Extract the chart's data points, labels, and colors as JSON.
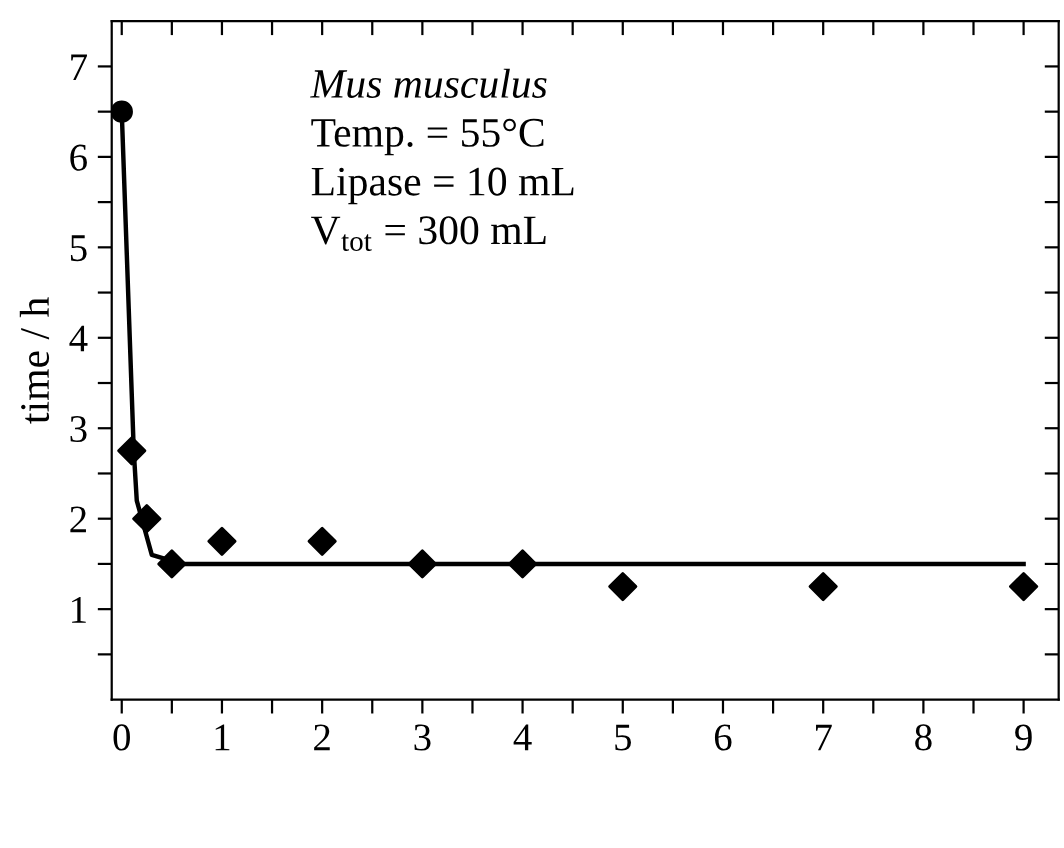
{
  "chart_data": {
    "type": "scatter",
    "ylabel": "time / h",
    "annotations": [
      "Mus musculus",
      "Temp. = 55°C",
      "Lipase = 10 mL",
      "V$_{tot}$ = 300 mL"
    ],
    "series": [
      {
        "marker": "circle",
        "color": "#000000",
        "x": [
          0
        ],
        "values": [
          6.5
        ]
      },
      {
        "marker": "diamond",
        "color": "#000000",
        "x": [
          0.1,
          0.25,
          0.5,
          1,
          2,
          3,
          4,
          5,
          7,
          9
        ],
        "values": [
          2.75,
          2.0,
          1.5,
          1.75,
          1.75,
          1.5,
          1.5,
          1.25,
          1.25,
          1.25
        ]
      },
      {
        "type": "line",
        "marker": "none",
        "line_style": "solid",
        "color": "#000000",
        "x": [
          0,
          0.12,
          0.15,
          0.3,
          0.6,
          9
        ],
        "values": [
          6.5,
          2.75,
          2.2,
          1.6,
          1.5,
          1.5
        ]
      }
    ],
    "xlim": [
      -0.1,
      9.35
    ],
    "ylim": [
      0,
      7.5
    ],
    "xticks": [
      0,
      {
        "value": 0.5,
        "label": null
      },
      1,
      {
        "value": 1.5,
        "label": null
      },
      2,
      {
        "value": 2.5,
        "label": null
      },
      3,
      {
        "value": 3.5,
        "label": null
      },
      4,
      {
        "value": 4.5,
        "label": null
      },
      5,
      {
        "value": 5.5,
        "label": null
      },
      6,
      {
        "value": 6.5,
        "label": null
      },
      7,
      {
        "value": 7.5,
        "label": null
      },
      8,
      {
        "value": 8.5,
        "label": null
      },
      9
    ],
    "yticks": [
      {
        "value": 0.5,
        "label": null
      },
      1,
      {
        "value": 1.5,
        "label": null
      },
      2,
      {
        "value": 2.5,
        "label": null
      },
      3,
      {
        "value": 3.5,
        "label": null
      },
      4,
      {
        "value": 4.5,
        "label": null
      },
      5,
      {
        "value": 5.5,
        "label": null
      },
      6,
      {
        "value": 6.5,
        "label": null
      },
      7
    ],
    "grid": false,
    "legend": false
  }
}
